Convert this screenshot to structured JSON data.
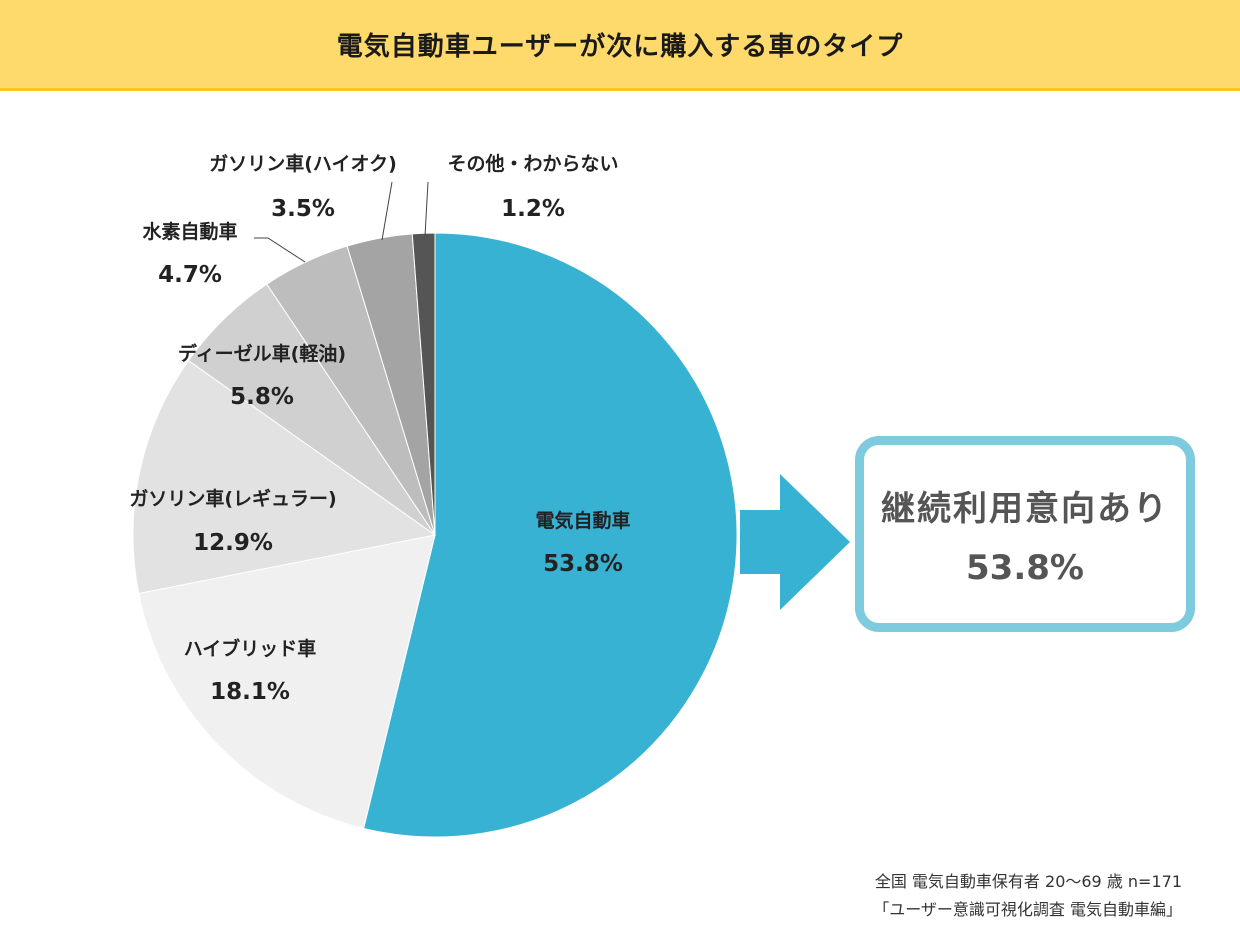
{
  "title": "電気自動車ユーザーが次に購入する車のタイプ",
  "chart_data": {
    "type": "pie",
    "slices": [
      {
        "label": "電気自動車",
        "value": 53.8,
        "value_text": "53.8%",
        "color": "#38b2d3"
      },
      {
        "label": "ハイブリッド車",
        "value": 18.1,
        "value_text": "18.1%",
        "color": "#f0f0f0"
      },
      {
        "label": "ガソリン車(レギュラー)",
        "value": 12.9,
        "value_text": "12.9%",
        "color": "#e2e2e2"
      },
      {
        "label": "ディーゼル車(軽油)",
        "value": 5.8,
        "value_text": "5.8%",
        "color": "#d0d0d0"
      },
      {
        "label": "水素自動車",
        "value": 4.7,
        "value_text": "4.7%",
        "color": "#bdbdbd"
      },
      {
        "label": "ガソリン車(ハイオク)",
        "value": 3.5,
        "value_text": "3.5%",
        "color": "#a4a4a4"
      },
      {
        "label": "その他・わからない",
        "value": 1.2,
        "value_text": "1.2%",
        "color": "#555555"
      }
    ]
  },
  "callout": {
    "label": "継続利用意向あり",
    "value": "53.8%",
    "border_color": "#7ecbe0",
    "arrow_color": "#38b2d3"
  },
  "footer": {
    "line1": "全国 電気自動車保有者 20～69 歳 n=171",
    "line2": "「ユーザー意識可視化調査 電気自動車編」"
  }
}
